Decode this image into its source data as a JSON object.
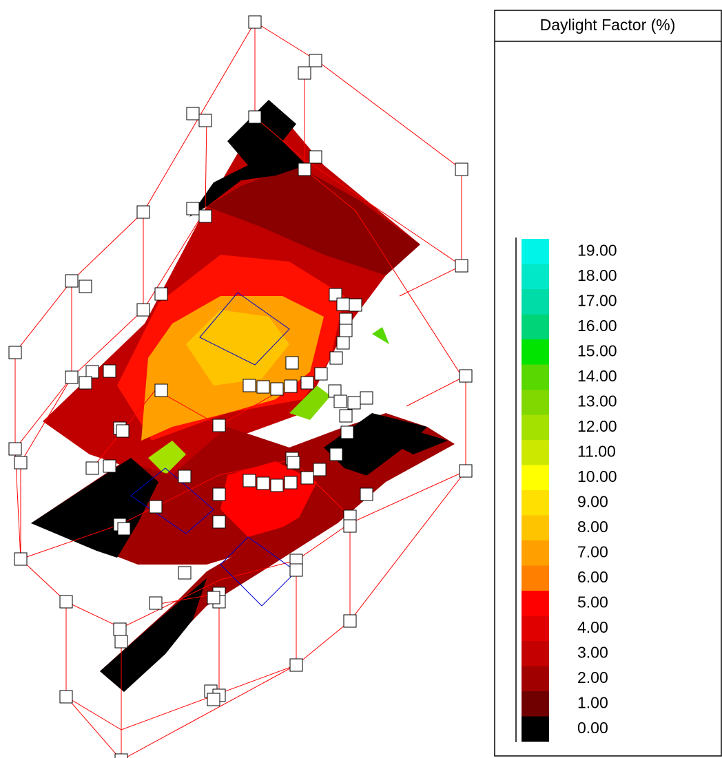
{
  "legend": {
    "title": "Daylight Factor (%)",
    "items": [
      {
        "label": "19.00",
        "color": "#00f5e8"
      },
      {
        "label": "18.00",
        "color": "#00e8c8"
      },
      {
        "label": "17.00",
        "color": "#00dca8"
      },
      {
        "label": "16.00",
        "color": "#00d478"
      },
      {
        "label": "15.00",
        "color": "#00e400"
      },
      {
        "label": "14.00",
        "color": "#58d800"
      },
      {
        "label": "13.00",
        "color": "#80d800"
      },
      {
        "label": "12.00",
        "color": "#a4e000"
      },
      {
        "label": "11.00",
        "color": "#cce800"
      },
      {
        "label": "10.00",
        "color": "#ffff00"
      },
      {
        "label": "9.00",
        "color": "#ffe000"
      },
      {
        "label": "8.00",
        "color": "#ffc400"
      },
      {
        "label": "7.00",
        "color": "#ffa000"
      },
      {
        "label": "6.00",
        "color": "#ff8000"
      },
      {
        "label": "5.00",
        "color": "#ff0000"
      },
      {
        "label": "4.00",
        "color": "#e00000"
      },
      {
        "label": "3.00",
        "color": "#c40000"
      },
      {
        "label": "2.00",
        "color": "#a00000"
      },
      {
        "label": "1.00",
        "color": "#700000"
      },
      {
        "label": "0.00",
        "color": "#000000"
      }
    ]
  }
}
